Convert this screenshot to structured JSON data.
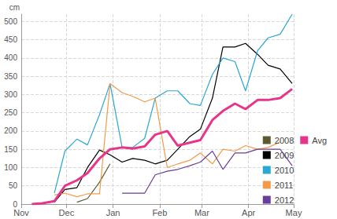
{
  "chart_data": {
    "type": "line",
    "y_label": "cm",
    "xlim": [
      0,
      181
    ],
    "xticks": [
      {
        "value": 0,
        "label": "Nov"
      },
      {
        "value": 30,
        "label": "Dec"
      },
      {
        "value": 61,
        "label": "Jan"
      },
      {
        "value": 92,
        "label": "Feb"
      },
      {
        "value": 120,
        "label": "Mar"
      },
      {
        "value": 151,
        "label": "Apr"
      },
      {
        "value": 181,
        "label": "May"
      }
    ],
    "ylim": [
      0,
      520
    ],
    "yticks": [
      0,
      50,
      100,
      150,
      200,
      250,
      300,
      350,
      400,
      450,
      500
    ],
    "grid": true,
    "legend": "right",
    "series": [
      {
        "name": "2008",
        "color": "#5b5a31",
        "x": [
          37,
          44,
          52,
          59
        ],
        "values": [
          5,
          15,
          60,
          110
        ]
      },
      {
        "name": "2009",
        "color": "#000000",
        "x": [
          22,
          29,
          37,
          44,
          52,
          59,
          67,
          74,
          82,
          89,
          97,
          104,
          112,
          119,
          127,
          134,
          142,
          149,
          157,
          164,
          172,
          180
        ],
        "values": [
          5,
          40,
          45,
          100,
          148,
          135,
          115,
          125,
          120,
          110,
          120,
          150,
          185,
          205,
          290,
          430,
          430,
          440,
          410,
          380,
          370,
          330
        ]
      },
      {
        "name": "2010",
        "color": "#2aa7d4",
        "x": [
          22,
          29,
          37,
          44,
          52,
          59,
          67,
          74,
          82,
          89,
          97,
          104,
          112,
          119,
          127,
          134,
          142,
          149,
          157,
          164,
          172,
          180
        ],
        "values": [
          30,
          145,
          178,
          162,
          245,
          330,
          155,
          155,
          180,
          290,
          310,
          310,
          275,
          270,
          355,
          400,
          390,
          310,
          420,
          455,
          465,
          520
        ]
      },
      {
        "name": "2011",
        "color": "#f39a4a",
        "x": [
          22,
          29,
          37,
          44,
          52,
          59,
          67,
          74,
          82,
          89,
          97,
          104,
          112,
          119,
          127,
          134,
          142,
          149,
          157,
          164,
          172
        ],
        "values": [
          25,
          30,
          20,
          28,
          28,
          330,
          305,
          295,
          280,
          290,
          100,
          110,
          120,
          140,
          110,
          150,
          145,
          160,
          150,
          155,
          170
        ]
      },
      {
        "name": "2012",
        "color": "#6a3d9a",
        "x": [
          67,
          74,
          82,
          89,
          97,
          104,
          112,
          119,
          127,
          134,
          142,
          149,
          157,
          164,
          172,
          180
        ],
        "values": [
          30,
          30,
          30,
          80,
          90,
          95,
          105,
          115,
          145,
          95,
          140,
          140,
          150,
          150,
          150,
          105
        ]
      },
      {
        "name": "Avg",
        "color": "#e8358c",
        "line_style": "bold",
        "x": [
          7,
          14,
          22,
          29,
          37,
          44,
          52,
          59,
          67,
          74,
          82,
          89,
          97,
          104,
          112,
          119,
          127,
          134,
          142,
          149,
          157,
          164,
          172,
          180
        ],
        "values": [
          0,
          2,
          8,
          50,
          65,
          85,
          125,
          150,
          155,
          152,
          158,
          190,
          200,
          160,
          168,
          175,
          230,
          255,
          275,
          260,
          285,
          285,
          290,
          315
        ]
      }
    ]
  }
}
